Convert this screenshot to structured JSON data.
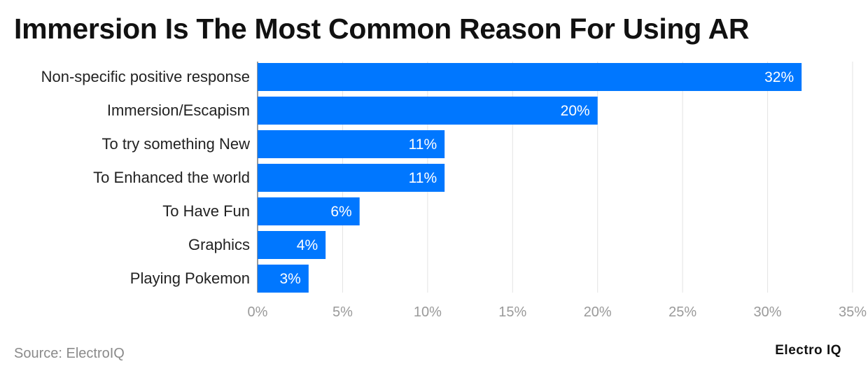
{
  "title": "Immersion Is The Most Common Reason For Using AR",
  "source": "Source: ElectroIQ",
  "brand": "Electro IQ",
  "colors": {
    "bar": "#0077ff",
    "grid": "#e3e3e3",
    "label_text": "#222222",
    "tick_text": "#9a9a9a",
    "bar_text": "#ffffff"
  },
  "chart_data": {
    "type": "bar",
    "orientation": "horizontal",
    "categories": [
      "Non-specific positive response",
      "Immersion/Escapism",
      "To try something New",
      "To Enhanced the world",
      "To Have Fun",
      "Graphics",
      "Playing Pokemon"
    ],
    "values": [
      32,
      20,
      11,
      11,
      6,
      4,
      3
    ],
    "value_labels": [
      "32%",
      "20%",
      "11%",
      "11%",
      "6%",
      "4%",
      "3%"
    ],
    "xlim": [
      0,
      35
    ],
    "xticks": [
      0,
      5,
      10,
      15,
      20,
      25,
      30,
      35
    ],
    "xtick_labels": [
      "0%",
      "5%",
      "10%",
      "15%",
      "20%",
      "25%",
      "30%",
      "35%"
    ],
    "grid": true
  }
}
